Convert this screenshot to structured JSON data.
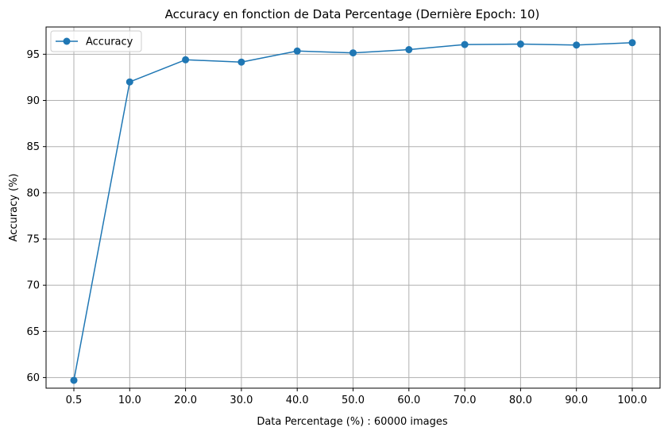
{
  "chart_data": {
    "type": "line",
    "title": "Accuracy en fonction de Data Percentage (Dernière Epoch: 10)",
    "xlabel": "Data Percentage (%) : 60000 images",
    "ylabel": "Accuracy (%)",
    "categories": [
      "0.5",
      "10.0",
      "20.0",
      "30.0",
      "40.0",
      "50.0",
      "60.0",
      "70.0",
      "80.0",
      "90.0",
      "100.0"
    ],
    "series": [
      {
        "name": "Accuracy",
        "color": "#1f77b4",
        "marker": "circle",
        "values": [
          59.7,
          92.0,
          94.4,
          94.15,
          95.35,
          95.15,
          95.5,
          96.05,
          96.1,
          96.0,
          96.25
        ]
      }
    ],
    "yticks": [
      60,
      65,
      70,
      75,
      80,
      85,
      90,
      95
    ],
    "ylim": [
      58.85,
      97.95
    ],
    "grid": true,
    "legend_position": "top-left"
  }
}
